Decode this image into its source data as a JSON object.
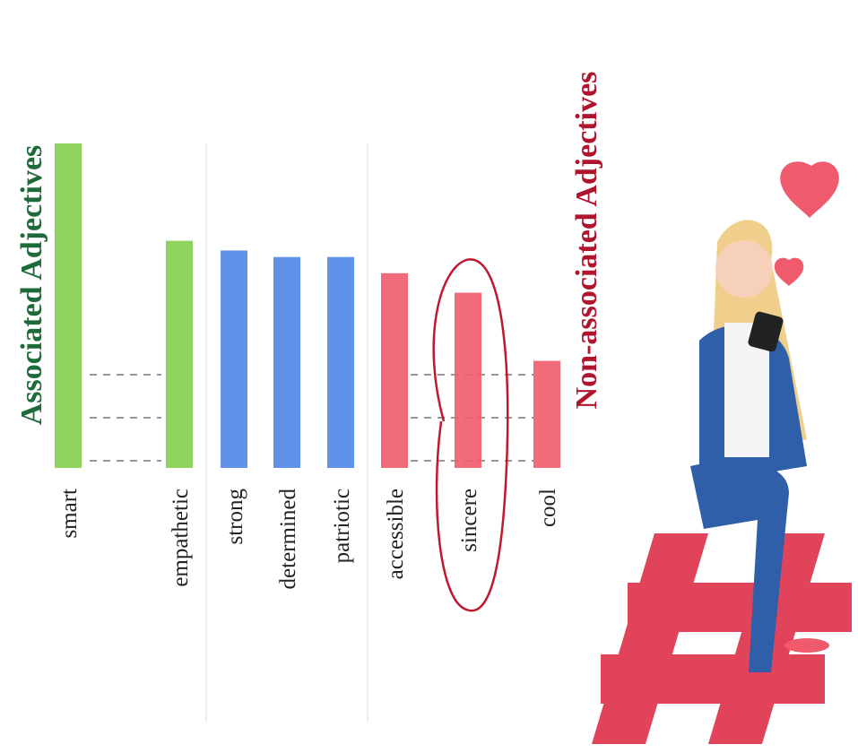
{
  "chart_data": {
    "type": "bar",
    "title": "Associated Adjectives",
    "subtitle": "Non-associated Adjectives",
    "categories": [
      "smart",
      "empathetic",
      "strong",
      "determined",
      "patriotic",
      "accessible",
      "sincere",
      "cool"
    ],
    "values": [
      100,
      70,
      67,
      65,
      65,
      60,
      54,
      33
    ],
    "colors": [
      "#84cf4e",
      "#84cf4e",
      "#4f86e8",
      "#4f86e8",
      "#4f86e8",
      "#ef5b6c",
      "#ef5b6c",
      "#ef5b6c"
    ],
    "title_color": "#1e6b3a",
    "subtitle_color": "#b0152e",
    "ylim": [
      0,
      100
    ]
  }
}
